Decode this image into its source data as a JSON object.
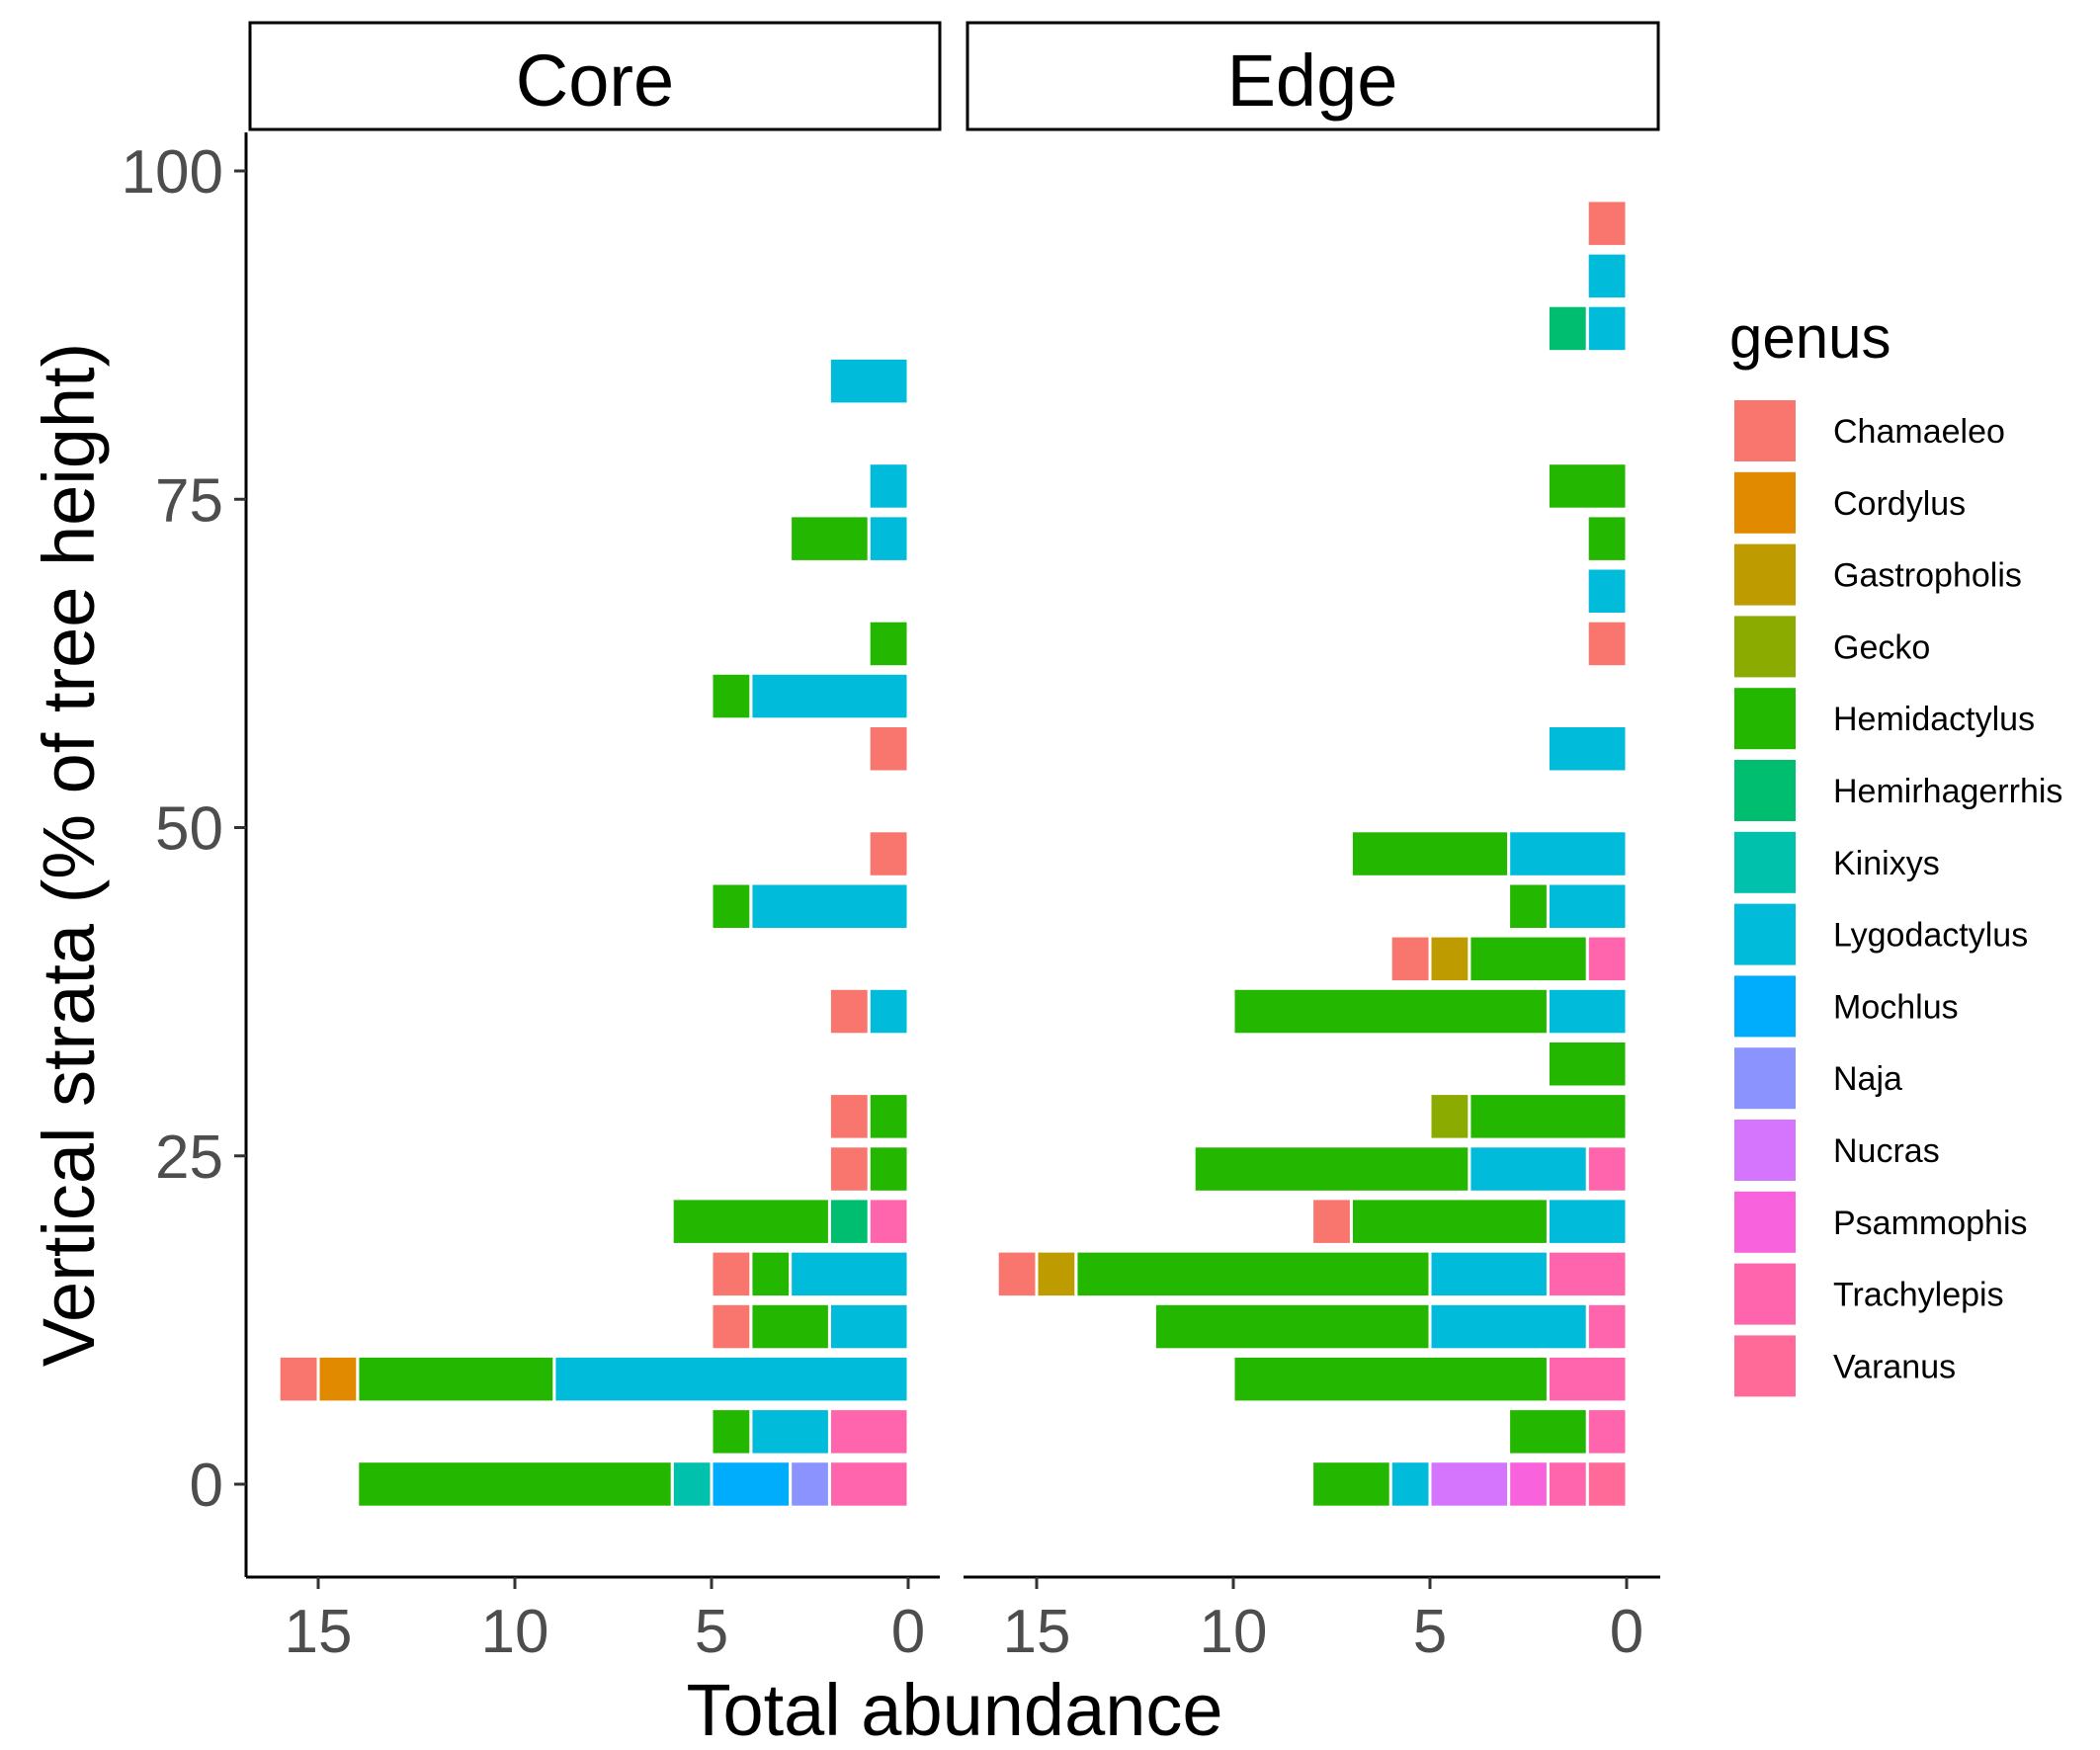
{
  "chart_data": {
    "type": "bar",
    "orientation": "horizontal",
    "stacked": true,
    "x_reversed": true,
    "xlabel": "Total abundance",
    "ylabel": "Vertical strata (% of tree height)",
    "xlim": [
      0,
      16.8
    ],
    "ylim": [
      -6,
      103
    ],
    "x_ticks": [
      15,
      10,
      5,
      0
    ],
    "y_ticks": [
      0,
      25,
      50,
      75,
      100
    ],
    "grid": false,
    "legend": {
      "title": "genus",
      "position": "right",
      "entries": [
        {
          "name": "Chamaeleo",
          "color": "#F8766D"
        },
        {
          "name": "Cordylus",
          "color": "#E18A00"
        },
        {
          "name": "Gastropholis",
          "color": "#BE9C00"
        },
        {
          "name": "Gecko",
          "color": "#8CAB00"
        },
        {
          "name": "Hemidactylus",
          "color": "#24B700"
        },
        {
          "name": "Hemirhagerrhis",
          "color": "#00BE70"
        },
        {
          "name": "Kinixys",
          "color": "#00C1AB"
        },
        {
          "name": "Lygodactylus",
          "color": "#00BBDA"
        },
        {
          "name": "Mochlus",
          "color": "#00ACFC"
        },
        {
          "name": "Naja",
          "color": "#8B93FF"
        },
        {
          "name": "Nucras",
          "color": "#D575FE"
        },
        {
          "name": "Psammophis",
          "color": "#F962DD"
        },
        {
          "name": "Trachylepis",
          "color": "#FF65AC"
        },
        {
          "name": "Varanus",
          "color": "#FF6A98"
        }
      ]
    },
    "panels": [
      {
        "name": "Core",
        "strata": [
          {
            "y": 0,
            "segments": [
              {
                "genus": "Trachylepis",
                "count": 2
              },
              {
                "genus": "Naja",
                "count": 1
              },
              {
                "genus": "Mochlus",
                "count": 2
              },
              {
                "genus": "Kinixys",
                "count": 1
              },
              {
                "genus": "Hemidactylus",
                "count": 8
              }
            ]
          },
          {
            "y": 4,
            "segments": [
              {
                "genus": "Trachylepis",
                "count": 2
              },
              {
                "genus": "Lygodactylus",
                "count": 2
              },
              {
                "genus": "Hemidactylus",
                "count": 1
              }
            ]
          },
          {
            "y": 8,
            "segments": [
              {
                "genus": "Lygodactylus",
                "count": 9
              },
              {
                "genus": "Hemidactylus",
                "count": 5
              },
              {
                "genus": "Cordylus",
                "count": 1
              },
              {
                "genus": "Chamaeleo",
                "count": 1
              }
            ]
          },
          {
            "y": 12,
            "segments": [
              {
                "genus": "Lygodactylus",
                "count": 2
              },
              {
                "genus": "Hemidactylus",
                "count": 2
              },
              {
                "genus": "Chamaeleo",
                "count": 1
              }
            ]
          },
          {
            "y": 16,
            "segments": [
              {
                "genus": "Lygodactylus",
                "count": 3
              },
              {
                "genus": "Hemidactylus",
                "count": 1
              },
              {
                "genus": "Chamaeleo",
                "count": 1
              }
            ]
          },
          {
            "y": 20,
            "segments": [
              {
                "genus": "Trachylepis",
                "count": 1
              },
              {
                "genus": "Hemirhagerrhis",
                "count": 1
              },
              {
                "genus": "Hemidactylus",
                "count": 4
              }
            ]
          },
          {
            "y": 24,
            "segments": [
              {
                "genus": "Hemidactylus",
                "count": 1
              },
              {
                "genus": "Chamaeleo",
                "count": 1
              }
            ]
          },
          {
            "y": 28,
            "segments": [
              {
                "genus": "Hemidactylus",
                "count": 1
              },
              {
                "genus": "Chamaeleo",
                "count": 1
              }
            ]
          },
          {
            "y": 36,
            "segments": [
              {
                "genus": "Lygodactylus",
                "count": 1
              },
              {
                "genus": "Chamaeleo",
                "count": 1
              }
            ]
          },
          {
            "y": 44,
            "segments": [
              {
                "genus": "Lygodactylus",
                "count": 4
              },
              {
                "genus": "Hemidactylus",
                "count": 1
              }
            ]
          },
          {
            "y": 48,
            "segments": [
              {
                "genus": "Chamaeleo",
                "count": 1
              }
            ]
          },
          {
            "y": 56,
            "segments": [
              {
                "genus": "Chamaeleo",
                "count": 1
              }
            ]
          },
          {
            "y": 60,
            "segments": [
              {
                "genus": "Lygodactylus",
                "count": 4
              },
              {
                "genus": "Hemidactylus",
                "count": 1
              }
            ]
          },
          {
            "y": 64,
            "segments": [
              {
                "genus": "Hemidactylus",
                "count": 1
              }
            ]
          },
          {
            "y": 72,
            "segments": [
              {
                "genus": "Lygodactylus",
                "count": 1
              },
              {
                "genus": "Hemidactylus",
                "count": 2
              }
            ]
          },
          {
            "y": 76,
            "segments": [
              {
                "genus": "Lygodactylus",
                "count": 1
              }
            ]
          },
          {
            "y": 84,
            "segments": [
              {
                "genus": "Lygodactylus",
                "count": 2
              }
            ]
          }
        ]
      },
      {
        "name": "Edge",
        "strata": [
          {
            "y": 0,
            "segments": [
              {
                "genus": "Varanus",
                "count": 1
              },
              {
                "genus": "Trachylepis",
                "count": 1
              },
              {
                "genus": "Psammophis",
                "count": 1
              },
              {
                "genus": "Nucras",
                "count": 2
              },
              {
                "genus": "Lygodactylus",
                "count": 1
              },
              {
                "genus": "Hemidactylus",
                "count": 2
              }
            ]
          },
          {
            "y": 4,
            "segments": [
              {
                "genus": "Trachylepis",
                "count": 1
              },
              {
                "genus": "Hemidactylus",
                "count": 2
              }
            ]
          },
          {
            "y": 8,
            "segments": [
              {
                "genus": "Trachylepis",
                "count": 2
              },
              {
                "genus": "Hemidactylus",
                "count": 8
              }
            ]
          },
          {
            "y": 12,
            "segments": [
              {
                "genus": "Trachylepis",
                "count": 1
              },
              {
                "genus": "Lygodactylus",
                "count": 4
              },
              {
                "genus": "Hemidactylus",
                "count": 7
              }
            ]
          },
          {
            "y": 16,
            "segments": [
              {
                "genus": "Trachylepis",
                "count": 2
              },
              {
                "genus": "Lygodactylus",
                "count": 3
              },
              {
                "genus": "Hemidactylus",
                "count": 9
              },
              {
                "genus": "Gastropholis",
                "count": 1
              },
              {
                "genus": "Chamaeleo",
                "count": 1
              }
            ]
          },
          {
            "y": 20,
            "segments": [
              {
                "genus": "Lygodactylus",
                "count": 2
              },
              {
                "genus": "Hemidactylus",
                "count": 5
              },
              {
                "genus": "Chamaeleo",
                "count": 1
              }
            ]
          },
          {
            "y": 24,
            "segments": [
              {
                "genus": "Trachylepis",
                "count": 1
              },
              {
                "genus": "Lygodactylus",
                "count": 3
              },
              {
                "genus": "Hemidactylus",
                "count": 7
              }
            ]
          },
          {
            "y": 28,
            "segments": [
              {
                "genus": "Hemidactylus",
                "count": 4
              },
              {
                "genus": "Gecko",
                "count": 1
              }
            ]
          },
          {
            "y": 32,
            "segments": [
              {
                "genus": "Hemidactylus",
                "count": 2
              }
            ]
          },
          {
            "y": 36,
            "segments": [
              {
                "genus": "Lygodactylus",
                "count": 2
              },
              {
                "genus": "Hemidactylus",
                "count": 8
              }
            ]
          },
          {
            "y": 40,
            "segments": [
              {
                "genus": "Trachylepis",
                "count": 1
              },
              {
                "genus": "Hemidactylus",
                "count": 3
              },
              {
                "genus": "Gastropholis",
                "count": 1
              },
              {
                "genus": "Chamaeleo",
                "count": 1
              }
            ]
          },
          {
            "y": 44,
            "segments": [
              {
                "genus": "Lygodactylus",
                "count": 2
              },
              {
                "genus": "Hemidactylus",
                "count": 1
              }
            ]
          },
          {
            "y": 48,
            "segments": [
              {
                "genus": "Lygodactylus",
                "count": 3
              },
              {
                "genus": "Hemidactylus",
                "count": 4
              }
            ]
          },
          {
            "y": 56,
            "segments": [
              {
                "genus": "Lygodactylus",
                "count": 2
              }
            ]
          },
          {
            "y": 64,
            "segments": [
              {
                "genus": "Chamaeleo",
                "count": 1
              }
            ]
          },
          {
            "y": 68,
            "segments": [
              {
                "genus": "Lygodactylus",
                "count": 1
              }
            ]
          },
          {
            "y": 72,
            "segments": [
              {
                "genus": "Hemidactylus",
                "count": 1
              }
            ]
          },
          {
            "y": 76,
            "segments": [
              {
                "genus": "Hemidactylus",
                "count": 2
              }
            ]
          },
          {
            "y": 88,
            "segments": [
              {
                "genus": "Lygodactylus",
                "count": 1
              },
              {
                "genus": "Hemirhagerrhis",
                "count": 1
              }
            ]
          },
          {
            "y": 92,
            "segments": [
              {
                "genus": "Lygodactylus",
                "count": 1
              }
            ]
          },
          {
            "y": 96,
            "segments": [
              {
                "genus": "Chamaeleo",
                "count": 1
              }
            ]
          }
        ]
      }
    ]
  }
}
